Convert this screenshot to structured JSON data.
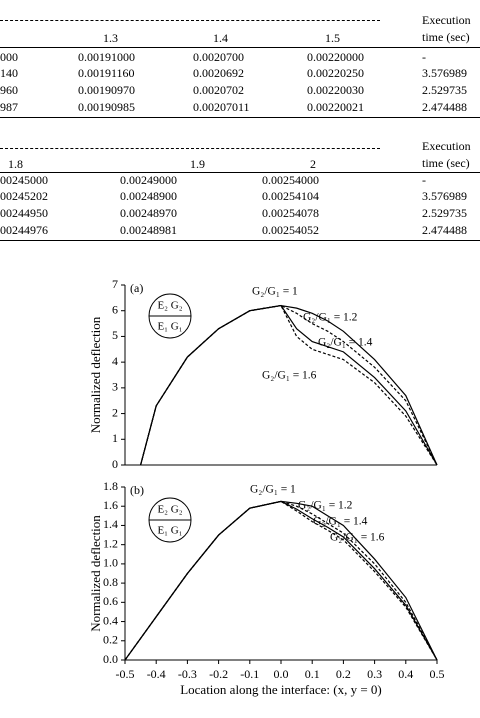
{
  "tables": [
    {
      "columns": [
        null,
        "1.3",
        "1.4",
        "1.5",
        "Execution time (sec)"
      ],
      "rows": [
        [
          "000",
          "0.00191000",
          "0.0020700",
          "0.00220000",
          "-"
        ],
        [
          "140",
          "0.00191160",
          "0.0020692",
          "0.00220250",
          "3.576989"
        ],
        [
          "960",
          "0.00190970",
          "0.0020702",
          "0.00220030",
          "2.529735"
        ],
        [
          "987",
          "0.00190985",
          "0.00207011",
          "0.00220021",
          "2.474488"
        ]
      ]
    },
    {
      "columns": [
        "1.8",
        "1.9",
        "2",
        "Execution time (sec)"
      ],
      "rows": [
        [
          "00245000",
          "0.00249000",
          "0.00254000",
          "-"
        ],
        [
          "00245202",
          "0.00248900",
          "0.00254104",
          "3.576989"
        ],
        [
          "00244950",
          "0.00248970",
          "0.00254078",
          "2.529735"
        ],
        [
          "00244976",
          "0.00248981",
          "0.00254052",
          "2.474488"
        ]
      ]
    }
  ],
  "chart_data": [
    {
      "type": "line",
      "panel_label": "(a)",
      "ylabel": "Normalized deflection",
      "inset": [
        "E₂ G₂",
        "E₁ G₁"
      ],
      "xlim": [
        -0.5,
        0.5
      ],
      "ylim": [
        0,
        7
      ],
      "yticks": [
        0,
        1,
        2,
        3,
        4,
        5,
        6,
        7
      ],
      "x": [
        -0.45,
        -0.4,
        -0.3,
        -0.2,
        -0.1,
        0,
        0.05,
        0.1,
        0.15,
        0.2,
        0.3,
        0.4,
        0.5
      ],
      "series": [
        {
          "name": "G₂/G₁ = 1",
          "color": "#000000",
          "style": "solid",
          "values": [
            0,
            2.3,
            4.2,
            5.3,
            6.0,
            6.2,
            6.1,
            5.9,
            5.6,
            5.2,
            4.1,
            2.7,
            0
          ]
        },
        {
          "name": "G₂/G₁ = 1.2",
          "color": "#000000",
          "style": "dashed",
          "values": [
            0,
            2.3,
            4.2,
            5.3,
            6.0,
            6.2,
            5.9,
            5.5,
            5.2,
            4.8,
            3.8,
            2.5,
            0
          ]
        },
        {
          "name": "G₂/G₁ = 1.4",
          "color": "#000000",
          "style": "solid",
          "values": [
            0,
            2.3,
            4.2,
            5.3,
            6.0,
            6.2,
            5.3,
            4.8,
            4.6,
            4.4,
            3.4,
            2.1,
            0
          ]
        },
        {
          "name": "G₂/G₁ = 1.6",
          "color": "#000000",
          "style": "dashed",
          "values": [
            0,
            2.3,
            4.2,
            5.3,
            6.0,
            6.2,
            5.0,
            4.5,
            4.3,
            4.1,
            3.2,
            1.9,
            0
          ]
        }
      ]
    },
    {
      "type": "line",
      "panel_label": "(b)",
      "ylabel": "Normalized deflection",
      "xlabel": "Location along the interface: (x, y = 0)",
      "inset": [
        "E₂ G₂",
        "E₁ G₁"
      ],
      "xlim": [
        -0.5,
        0.5
      ],
      "ylim": [
        0,
        1.8
      ],
      "xticks": [
        -0.5,
        -0.4,
        -0.3,
        -0.2,
        -0.1,
        {
          "value": 0,
          "label": "0.0"
        },
        0.1,
        0.2,
        0.3,
        0.4,
        0.5
      ],
      "yticks": [
        {
          "value": 0,
          "label": "0.0"
        },
        0.2,
        0.4,
        0.6,
        0.8,
        {
          "value": 1,
          "label": "1.0"
        },
        1.2,
        1.4,
        1.6,
        1.8
      ],
      "x": [
        -0.5,
        -0.4,
        -0.3,
        -0.2,
        -0.1,
        0,
        0.05,
        0.1,
        0.15,
        0.2,
        0.3,
        0.4,
        0.5
      ],
      "series": [
        {
          "name": "G₂/G₁ = 1",
          "color": "#000000",
          "style": "solid",
          "values": [
            0,
            0.45,
            0.9,
            1.3,
            1.58,
            1.65,
            1.63,
            1.6,
            1.5,
            1.4,
            1.05,
            0.65,
            0
          ]
        },
        {
          "name": "G₂/G₁ = 1.2",
          "color": "#000000",
          "style": "dashed",
          "values": [
            0,
            0.45,
            0.9,
            1.3,
            1.58,
            1.65,
            1.6,
            1.52,
            1.42,
            1.32,
            1.0,
            0.6,
            0
          ]
        },
        {
          "name": "G₂/G₁ = 1.4",
          "color": "#000000",
          "style": "solid",
          "values": [
            0,
            0.45,
            0.9,
            1.3,
            1.58,
            1.65,
            1.57,
            1.47,
            1.38,
            1.28,
            0.95,
            0.57,
            0
          ]
        },
        {
          "name": "G₂/G₁ = 1.6",
          "color": "#000000",
          "style": "dashed",
          "values": [
            0,
            0.45,
            0.9,
            1.3,
            1.58,
            1.65,
            1.55,
            1.44,
            1.35,
            1.25,
            0.92,
            0.55,
            0
          ]
        }
      ]
    }
  ]
}
